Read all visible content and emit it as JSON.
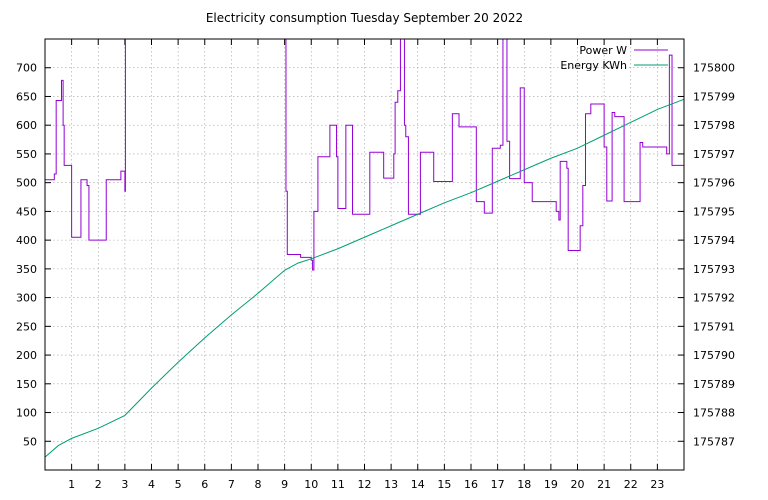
{
  "chart_data": {
    "type": "line",
    "title": "Electricity consumption Tuesday September 20 2022",
    "xlabel": "",
    "ylabel": "",
    "y2label": "",
    "grid": true,
    "legend_position": "top-right",
    "x_range": [
      0,
      24
    ],
    "x_ticks": [
      1,
      2,
      3,
      4,
      5,
      6,
      7,
      8,
      9,
      10,
      11,
      12,
      13,
      14,
      15,
      16,
      17,
      18,
      19,
      20,
      21,
      22,
      23
    ],
    "y_range": [
      0,
      750
    ],
    "y_ticks": [
      50,
      100,
      150,
      200,
      250,
      300,
      350,
      400,
      450,
      500,
      550,
      600,
      650,
      700
    ],
    "y2_range": [
      175786,
      175801
    ],
    "y2_ticks": [
      175787,
      175788,
      175789,
      175790,
      175791,
      175792,
      175793,
      175794,
      175795,
      175796,
      175797,
      175798,
      175799,
      175800
    ],
    "series": [
      {
        "name": "Power W",
        "color": "#9400d3",
        "axis": "left",
        "step": true,
        "points": [
          [
            0,
            505
          ],
          [
            0.35,
            515
          ],
          [
            0.42,
            643
          ],
          [
            0.62,
            678
          ],
          [
            0.68,
            600
          ],
          [
            0.72,
            530
          ],
          [
            1.0,
            405
          ],
          [
            1.35,
            505
          ],
          [
            1.58,
            495
          ],
          [
            1.65,
            400
          ],
          [
            2.3,
            505
          ],
          [
            2.85,
            520
          ],
          [
            3.0,
            485
          ],
          [
            3.02,
            750
          ],
          [
            9.0,
            750
          ],
          [
            9.05,
            485
          ],
          [
            9.1,
            375
          ],
          [
            9.6,
            370
          ],
          [
            10.0,
            365
          ],
          [
            10.05,
            348
          ],
          [
            10.1,
            450
          ],
          [
            10.25,
            545
          ],
          [
            10.7,
            600
          ],
          [
            10.95,
            545
          ],
          [
            11.0,
            455
          ],
          [
            11.3,
            600
          ],
          [
            11.55,
            445
          ],
          [
            12.2,
            553
          ],
          [
            12.72,
            508
          ],
          [
            13.1,
            550
          ],
          [
            13.15,
            640
          ],
          [
            13.25,
            660
          ],
          [
            13.35,
            750
          ],
          [
            13.5,
            600
          ],
          [
            13.55,
            580
          ],
          [
            13.65,
            445
          ],
          [
            14.1,
            553
          ],
          [
            14.6,
            502
          ],
          [
            15.3,
            620
          ],
          [
            15.55,
            597
          ],
          [
            16.2,
            467
          ],
          [
            16.5,
            447
          ],
          [
            16.8,
            560
          ],
          [
            17.1,
            565
          ],
          [
            17.2,
            750
          ],
          [
            17.32,
            750
          ],
          [
            17.35,
            572
          ],
          [
            17.45,
            507
          ],
          [
            17.85,
            665
          ],
          [
            18.0,
            500
          ],
          [
            18.3,
            467
          ],
          [
            19.2,
            450
          ],
          [
            19.3,
            435
          ],
          [
            19.35,
            537
          ],
          [
            19.6,
            525
          ],
          [
            19.65,
            382
          ],
          [
            20.1,
            425
          ],
          [
            20.2,
            495
          ],
          [
            20.3,
            620
          ],
          [
            20.5,
            637
          ],
          [
            21.0,
            562
          ],
          [
            21.1,
            468
          ],
          [
            21.3,
            622
          ],
          [
            21.4,
            615
          ],
          [
            21.75,
            467
          ],
          [
            22.35,
            570
          ],
          [
            22.45,
            562
          ],
          [
            23.35,
            550
          ],
          [
            23.45,
            722
          ],
          [
            23.55,
            530
          ],
          [
            24.0,
            530
          ]
        ]
      },
      {
        "name": "Energy KWh",
        "color": "#009e73",
        "axis": "right",
        "step": false,
        "points": [
          [
            0,
            175786.45
          ],
          [
            0.5,
            175786.85
          ],
          [
            1.0,
            175787.1
          ],
          [
            2.0,
            175787.45
          ],
          [
            3.0,
            175787.9
          ],
          [
            4.0,
            175788.85
          ],
          [
            5.0,
            175789.75
          ],
          [
            6.0,
            175790.6
          ],
          [
            7.0,
            175791.4
          ],
          [
            8.0,
            175792.15
          ],
          [
            9.0,
            175792.95
          ],
          [
            9.5,
            175793.2
          ],
          [
            10.0,
            175793.35
          ],
          [
            11.0,
            175793.7
          ],
          [
            12.0,
            175794.1
          ],
          [
            13.0,
            175794.5
          ],
          [
            14.0,
            175794.9
          ],
          [
            15.0,
            175795.3
          ],
          [
            16.0,
            175795.65
          ],
          [
            17.0,
            175796.05
          ],
          [
            18.0,
            175796.45
          ],
          [
            19.0,
            175796.85
          ],
          [
            20.0,
            175797.2
          ],
          [
            21.0,
            175797.65
          ],
          [
            22.0,
            175798.1
          ],
          [
            23.0,
            175798.55
          ],
          [
            24.0,
            175798.9
          ]
        ]
      }
    ]
  }
}
